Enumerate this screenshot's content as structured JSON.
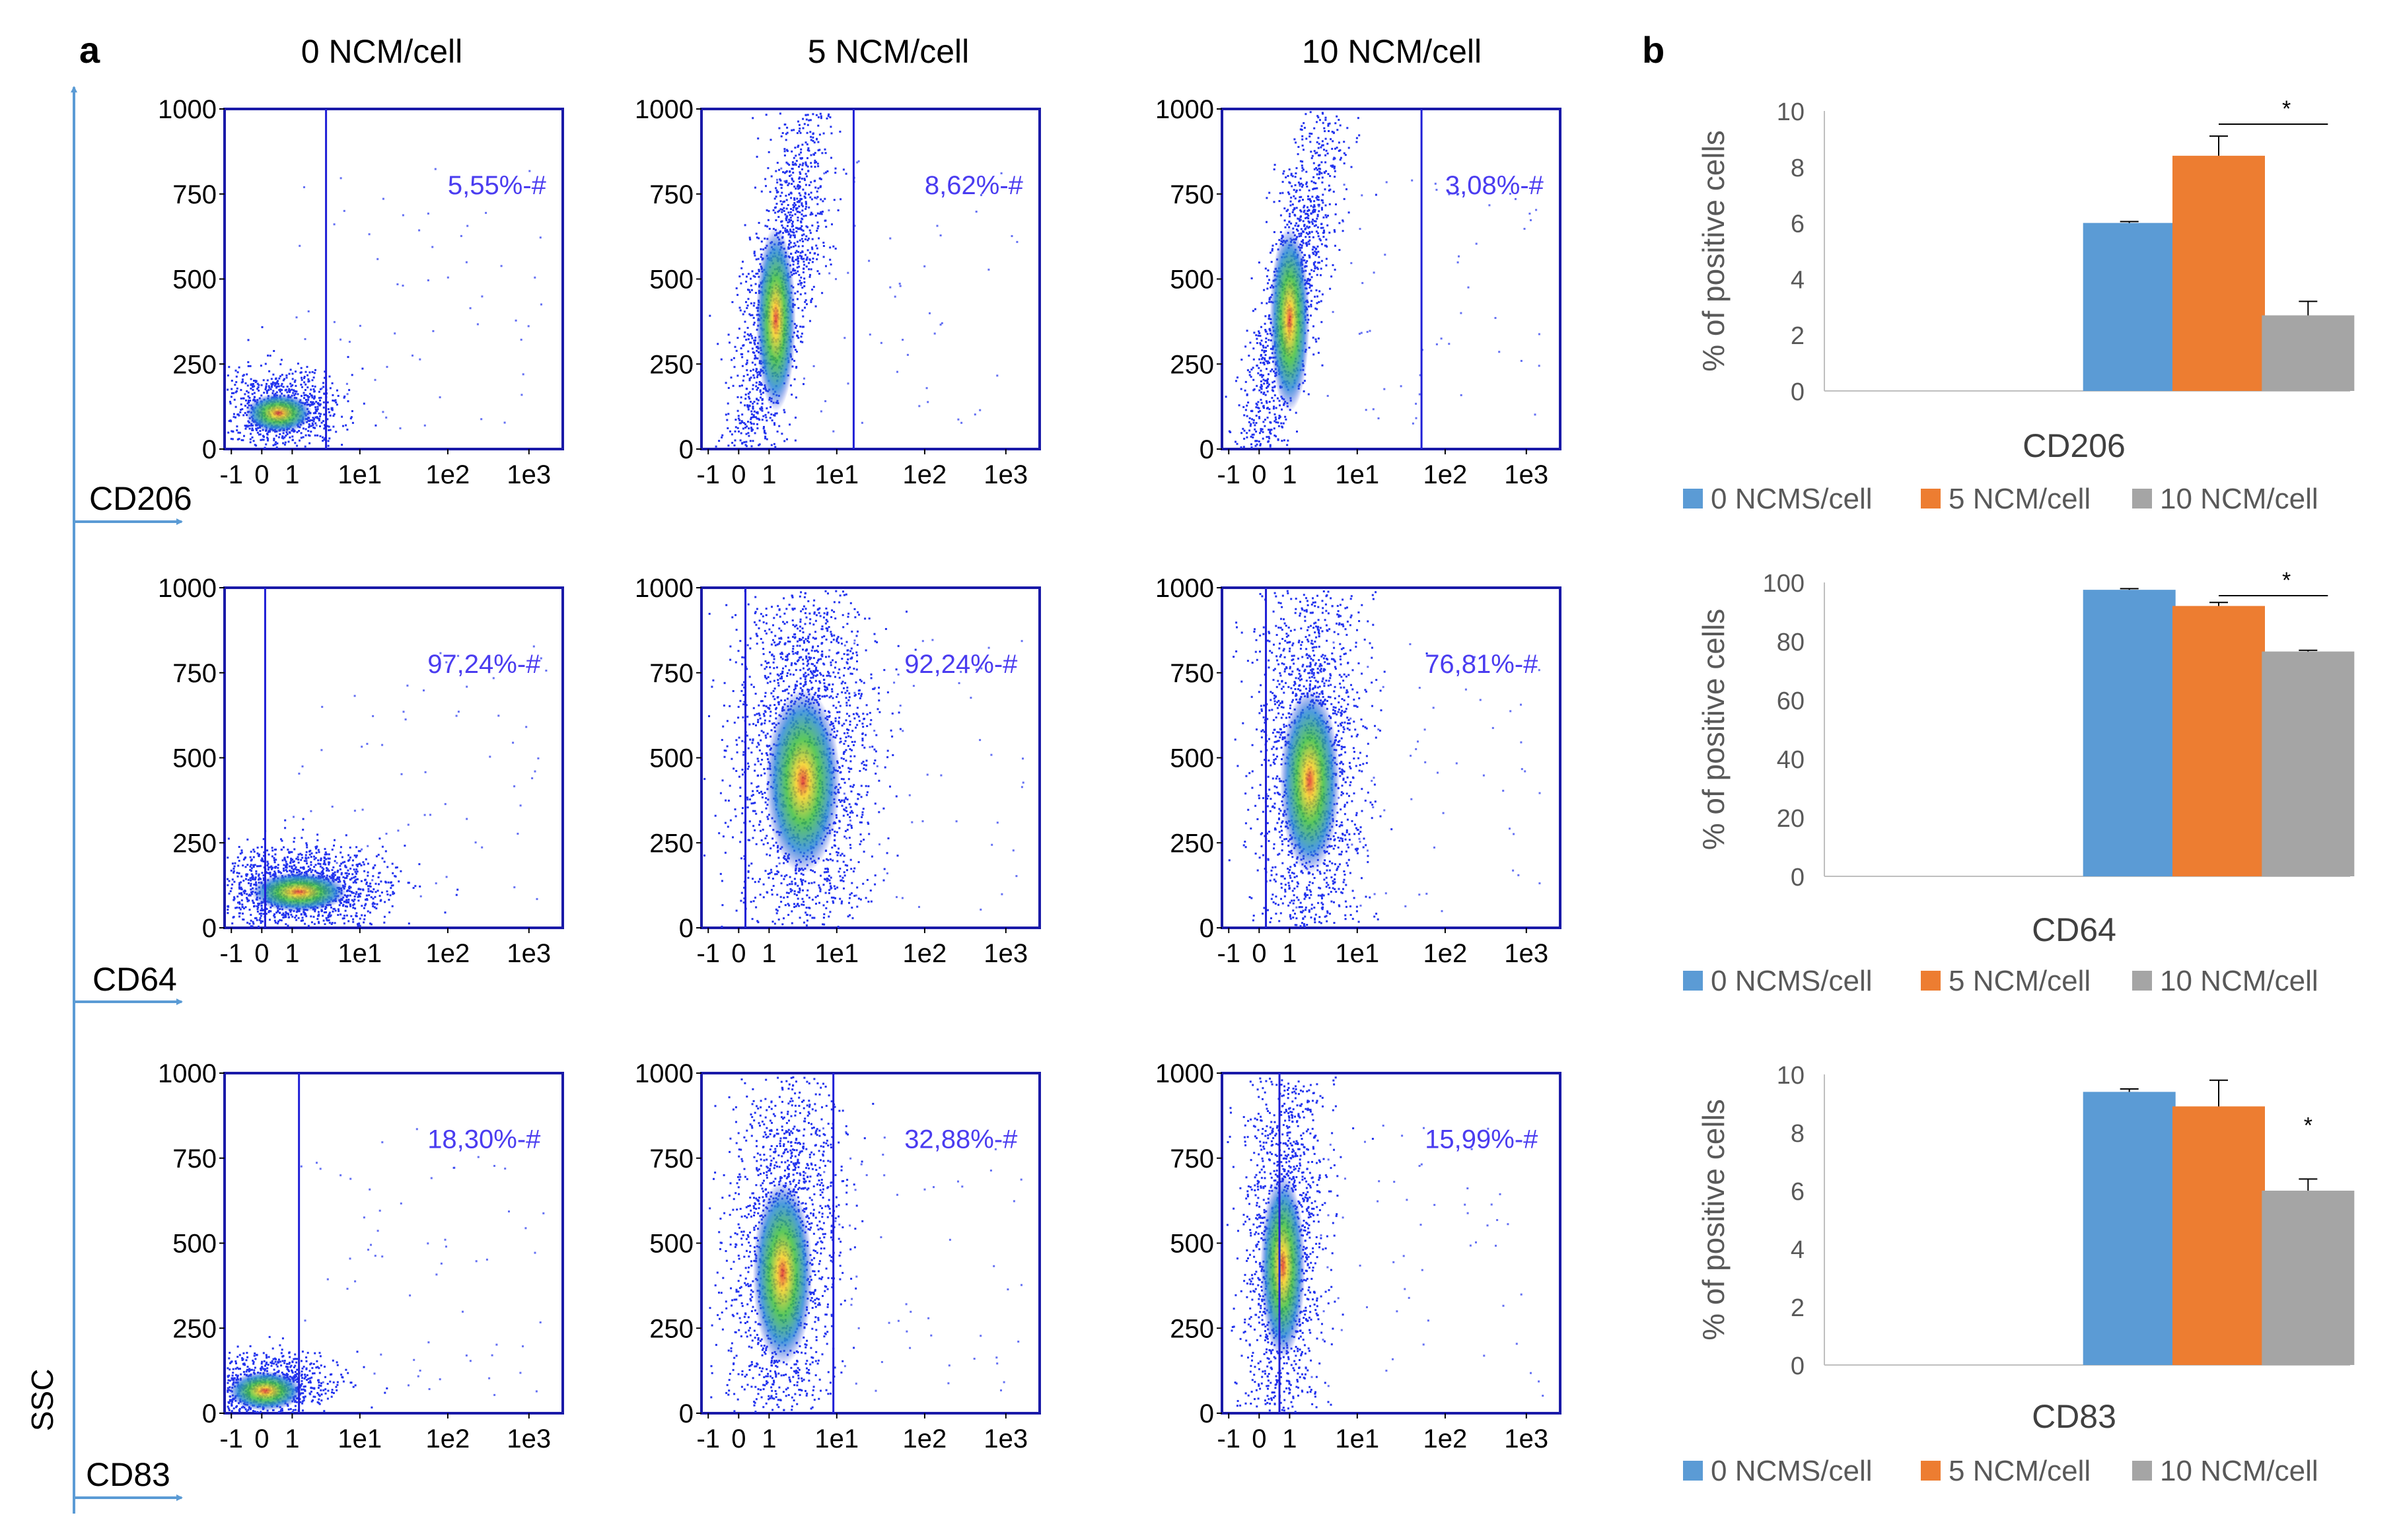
{
  "panel_a": {
    "label": "a",
    "columns": [
      "0 NCM/cell",
      "5 NCM/cell",
      "10 NCM/cell"
    ],
    "rows": [
      "CD206",
      "CD64",
      "CD83"
    ],
    "ssc_label": "SSC",
    "y_ticks": [
      "1000",
      "750",
      "500",
      "250",
      "0"
    ],
    "x_ticks": [
      "-1",
      "0",
      "1",
      "1e1",
      "1e2",
      "1e3"
    ],
    "gate_percentages": [
      [
        "5,55%-#",
        "8,62%-#",
        "3,08%-#"
      ],
      [
        "97,24%-#",
        "92,24%-#",
        "76,81%-#"
      ],
      [
        "18,30%-#",
        "32,88%-#",
        "15,99%-#"
      ]
    ],
    "colors": {
      "axis_arrow": "#5b9bd5",
      "gate": "#1f1fd6",
      "dots": "#2233ee",
      "label": "#4a3cf0"
    }
  },
  "panel_b": {
    "label": "b",
    "legend": [
      "0 NCMS/cell",
      "5 NCM/cell",
      "10 NCM/cell"
    ],
    "colors": [
      "#5b9bd5",
      "#ed7d31",
      "#a5a5a5"
    ],
    "significance": "*"
  },
  "chart_data": [
    {
      "type": "bar",
      "title": "CD206",
      "ylabel": "% of positive cells",
      "categories": [
        "0 NCMS/cell",
        "5 NCM/cell",
        "10 NCM/cell"
      ],
      "values": [
        6.0,
        8.4,
        2.7
      ],
      "errors": [
        0.05,
        0.7,
        0.5
      ],
      "ylim": [
        0,
        10
      ],
      "yticks": [
        0,
        2,
        4,
        6,
        8,
        10
      ],
      "significance": {
        "label": "*",
        "type": "bracket",
        "between": [
          1,
          2
        ]
      }
    },
    {
      "type": "bar",
      "title": "CD64",
      "ylabel": "% of positive cells",
      "categories": [
        "0 NCMS/cell",
        "5 NCM/cell",
        "10 NCM/cell"
      ],
      "values": [
        97.5,
        92.0,
        76.5
      ],
      "errors": [
        0.4,
        1.2,
        0.4
      ],
      "ylim": [
        0,
        100
      ],
      "yticks": [
        0,
        20,
        40,
        60,
        80,
        100
      ],
      "significance": {
        "label": "*",
        "type": "bracket",
        "between": [
          1,
          2
        ]
      }
    },
    {
      "type": "bar",
      "title": "CD83",
      "ylabel": "% of positive cells",
      "categories": [
        "0 NCMS/cell",
        "5 NCM/cell",
        "10 NCM/cell"
      ],
      "values": [
        9.4,
        8.9,
        6.0
      ],
      "errors": [
        0.1,
        0.9,
        0.4
      ],
      "ylim": [
        0,
        10
      ],
      "yticks": [
        0,
        2,
        4,
        6,
        8,
        10
      ],
      "significance": {
        "label": "*",
        "type": "single",
        "between": [
          2
        ]
      }
    }
  ]
}
